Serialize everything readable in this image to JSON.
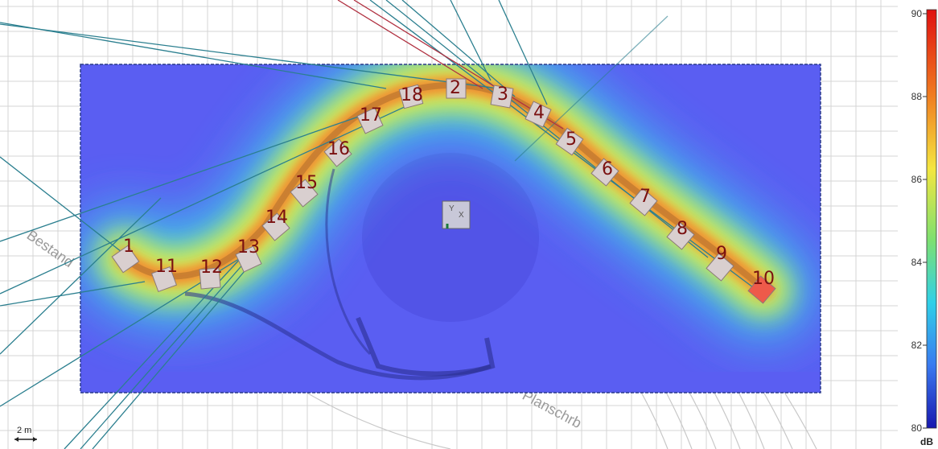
{
  "colors": {
    "field_low": "#5a5ef2",
    "field_cyan": "#3ad0e8",
    "field_yellow": "#f2e640",
    "field_hot": "#e84a2c",
    "ray_teal": "#2b7f8f",
    "ray_red": "#b03040",
    "grid": "#d4d4d4",
    "speaker_face": "#d9cfcf",
    "speaker_label": "#7a1010"
  },
  "speakers": [
    {
      "label": "1"
    },
    {
      "label": "11"
    },
    {
      "label": "12"
    },
    {
      "label": "13"
    },
    {
      "label": "14"
    },
    {
      "label": "15"
    },
    {
      "label": "16"
    },
    {
      "label": "17"
    },
    {
      "label": "18"
    },
    {
      "label": "2"
    },
    {
      "label": "3"
    },
    {
      "label": "4"
    },
    {
      "label": "5"
    },
    {
      "label": "6"
    },
    {
      "label": "7"
    },
    {
      "label": "8"
    },
    {
      "label": "9"
    },
    {
      "label": "10"
    }
  ],
  "background_labels": {
    "left": "Bestand",
    "bottom": "Planschrb"
  },
  "scale_bar": {
    "label": "2 m"
  },
  "origin_marker": {
    "axis_y": "Y",
    "axis_x": "X"
  },
  "colorbar": {
    "ticks": [
      "90",
      "88",
      "86",
      "84",
      "82",
      "80"
    ],
    "unit": "dB",
    "min": 80,
    "max": 90
  }
}
